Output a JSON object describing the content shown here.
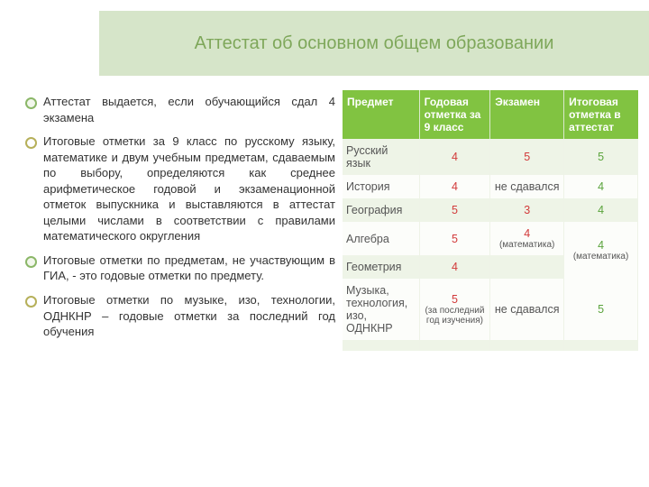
{
  "colors": {
    "title_band_bg": "#d6e5c9",
    "title_text": "#7ea75a",
    "th_bg": "#81c341",
    "th_text": "#ffffff",
    "row_light": "#eef4e7",
    "row_white": "#fcfdfa",
    "red": "#d23a3a",
    "green": "#5aa33c",
    "body_text": "#333333"
  },
  "title": "Аттестат об основном общем образовании",
  "bullets": [
    "Аттестат выдается, если обучающийся сдал 4 экзамена",
    "Итоговые отметки за 9 класс по русскому языку, математике и двум учебным предметам, сдаваемым по выбору, определяются как среднее арифметическое годовой и экзаменационной отметок выпускника и выставляются в аттестат целыми числами в соответствии с правилами математического округления",
    "Итоговые отметки по предметам, не участвующим в ГИА, - это годовые отметки по предмету.",
    "Итоговые отметки по музыке, изо, технологии, ОДНКНР – годовые отметки за последний год обучения"
  ],
  "table": {
    "headers": [
      "Предмет",
      "Годовая отметка за 9 класс",
      "Экзамен",
      "Итоговая отметка в аттестат"
    ],
    "col_widths": [
      "26%",
      "24%",
      "25%",
      "25%"
    ],
    "rows": [
      {
        "band": "l",
        "cells": [
          {
            "text": "Русский язык",
            "type": "plain"
          },
          {
            "text": "4",
            "type": "red"
          },
          {
            "text": "5",
            "type": "red"
          },
          {
            "text": "5",
            "type": "green"
          }
        ]
      },
      {
        "band": "w",
        "cells": [
          {
            "text": "История",
            "type": "plain"
          },
          {
            "text": "4",
            "type": "red"
          },
          {
            "text": "не сдавался",
            "type": "plain"
          },
          {
            "text": "4",
            "type": "green"
          }
        ]
      },
      {
        "band": "l",
        "cells": [
          {
            "text": "География",
            "type": "plain"
          },
          {
            "text": "5",
            "type": "red"
          },
          {
            "text": "3",
            "type": "red"
          },
          {
            "text": "4",
            "type": "green"
          }
        ]
      },
      {
        "band": "w",
        "rowspan_last": 2,
        "cells": [
          {
            "text": "Алгебра",
            "type": "plain"
          },
          {
            "text": "5",
            "type": "red"
          },
          {
            "text": "4",
            "type": "red",
            "sub": "(математика)"
          },
          {
            "text": "4",
            "type": "green",
            "sub": "(математика)",
            "rowspan": 2
          }
        ]
      },
      {
        "band": "l",
        "cells": [
          {
            "text": "Геометрия",
            "type": "plain"
          },
          {
            "text": "4",
            "type": "red"
          },
          {
            "text": "",
            "type": "plain"
          }
        ]
      },
      {
        "band": "w",
        "cells": [
          {
            "text": "Музыка, технология, изо, ОДНКНР",
            "type": "plain"
          },
          {
            "text": "5",
            "type": "red",
            "sub": "(за последний год изучения)"
          },
          {
            "text": "не сдавался",
            "type": "plain"
          },
          {
            "text": "5",
            "type": "green"
          }
        ]
      },
      {
        "band": "l",
        "cells": [
          {
            "text": "",
            "type": "plain"
          },
          {
            "text": "",
            "type": "plain"
          },
          {
            "text": "",
            "type": "plain"
          },
          {
            "text": "",
            "type": "plain"
          }
        ]
      }
    ]
  }
}
